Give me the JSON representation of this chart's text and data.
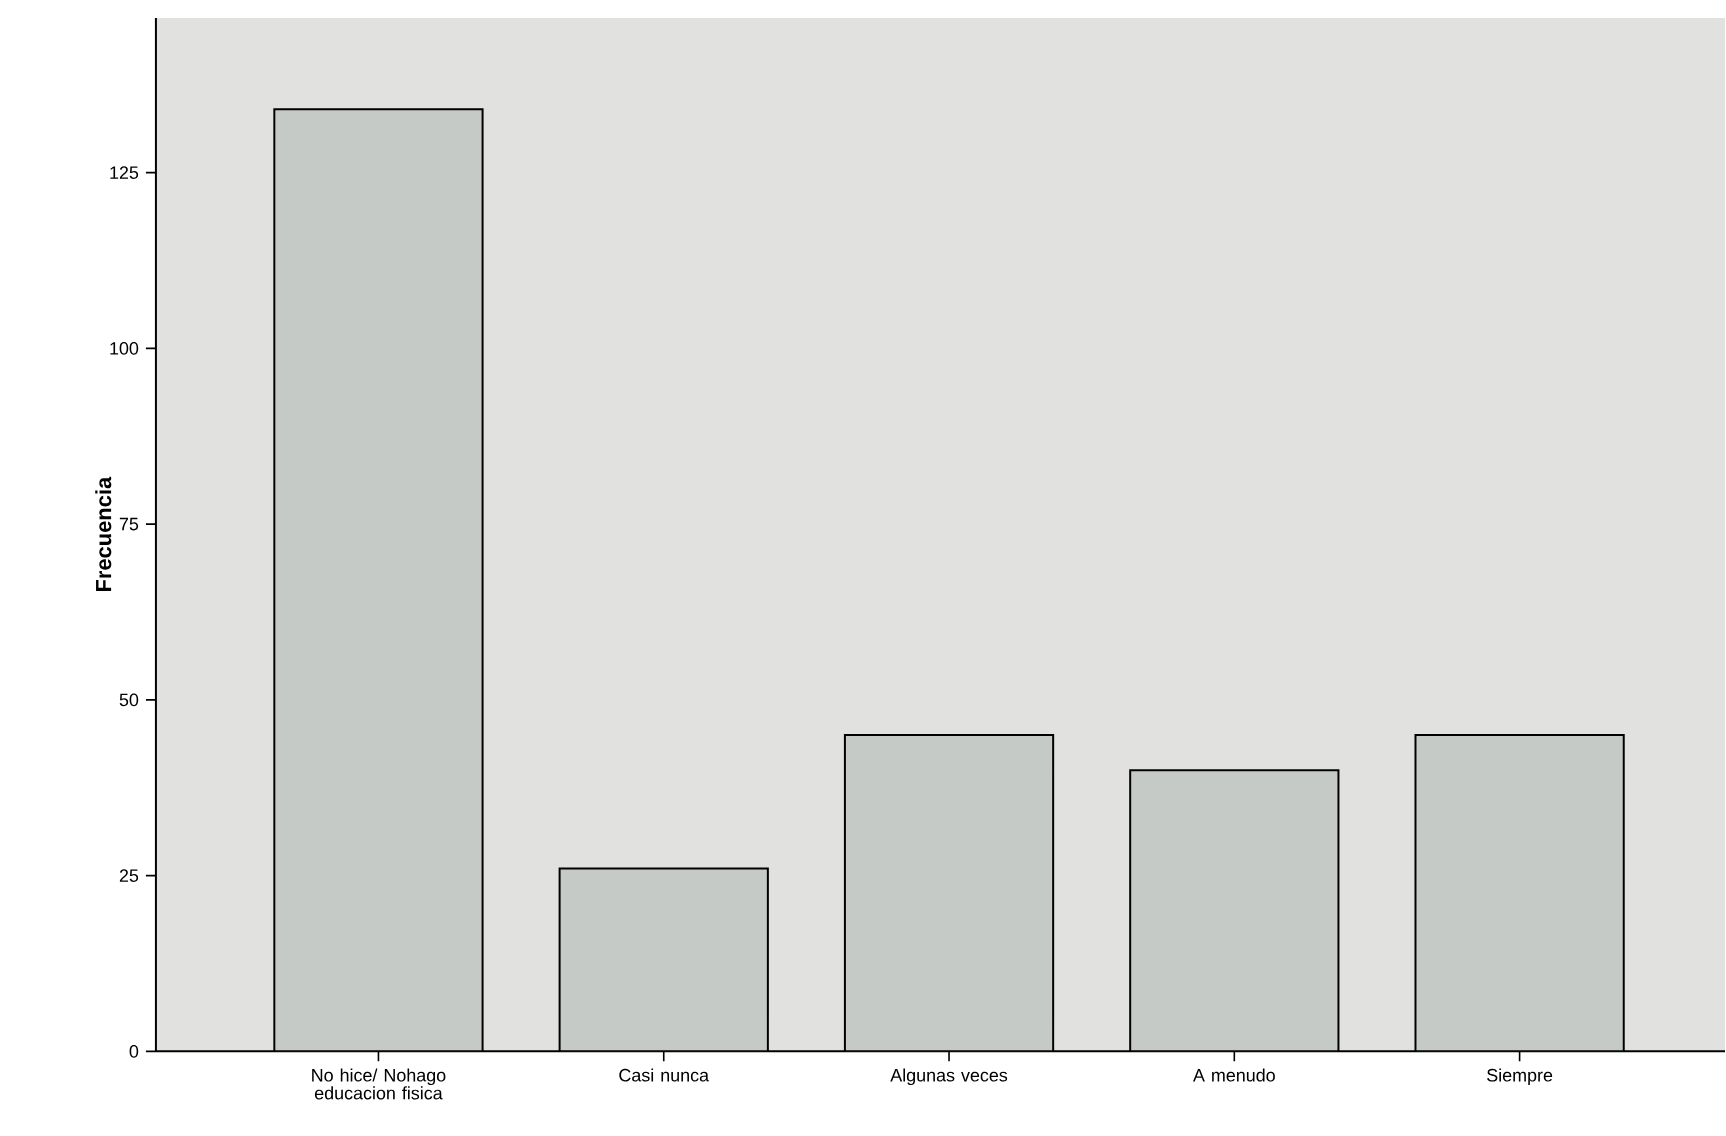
{
  "chart_data": {
    "type": "bar",
    "ylabel": "Frecuencia",
    "categories": [
      "No hice/ Nohago educacion fisica",
      "Casi nunca",
      "Algunas veces",
      "A menudo",
      "Siempre"
    ],
    "values": [
      134,
      26,
      45,
      40,
      45
    ],
    "color": "#c6cac6",
    "ylim": [
      0,
      147
    ],
    "yticks": [
      0,
      25,
      50,
      75,
      100,
      125
    ],
    "grid": false
  }
}
